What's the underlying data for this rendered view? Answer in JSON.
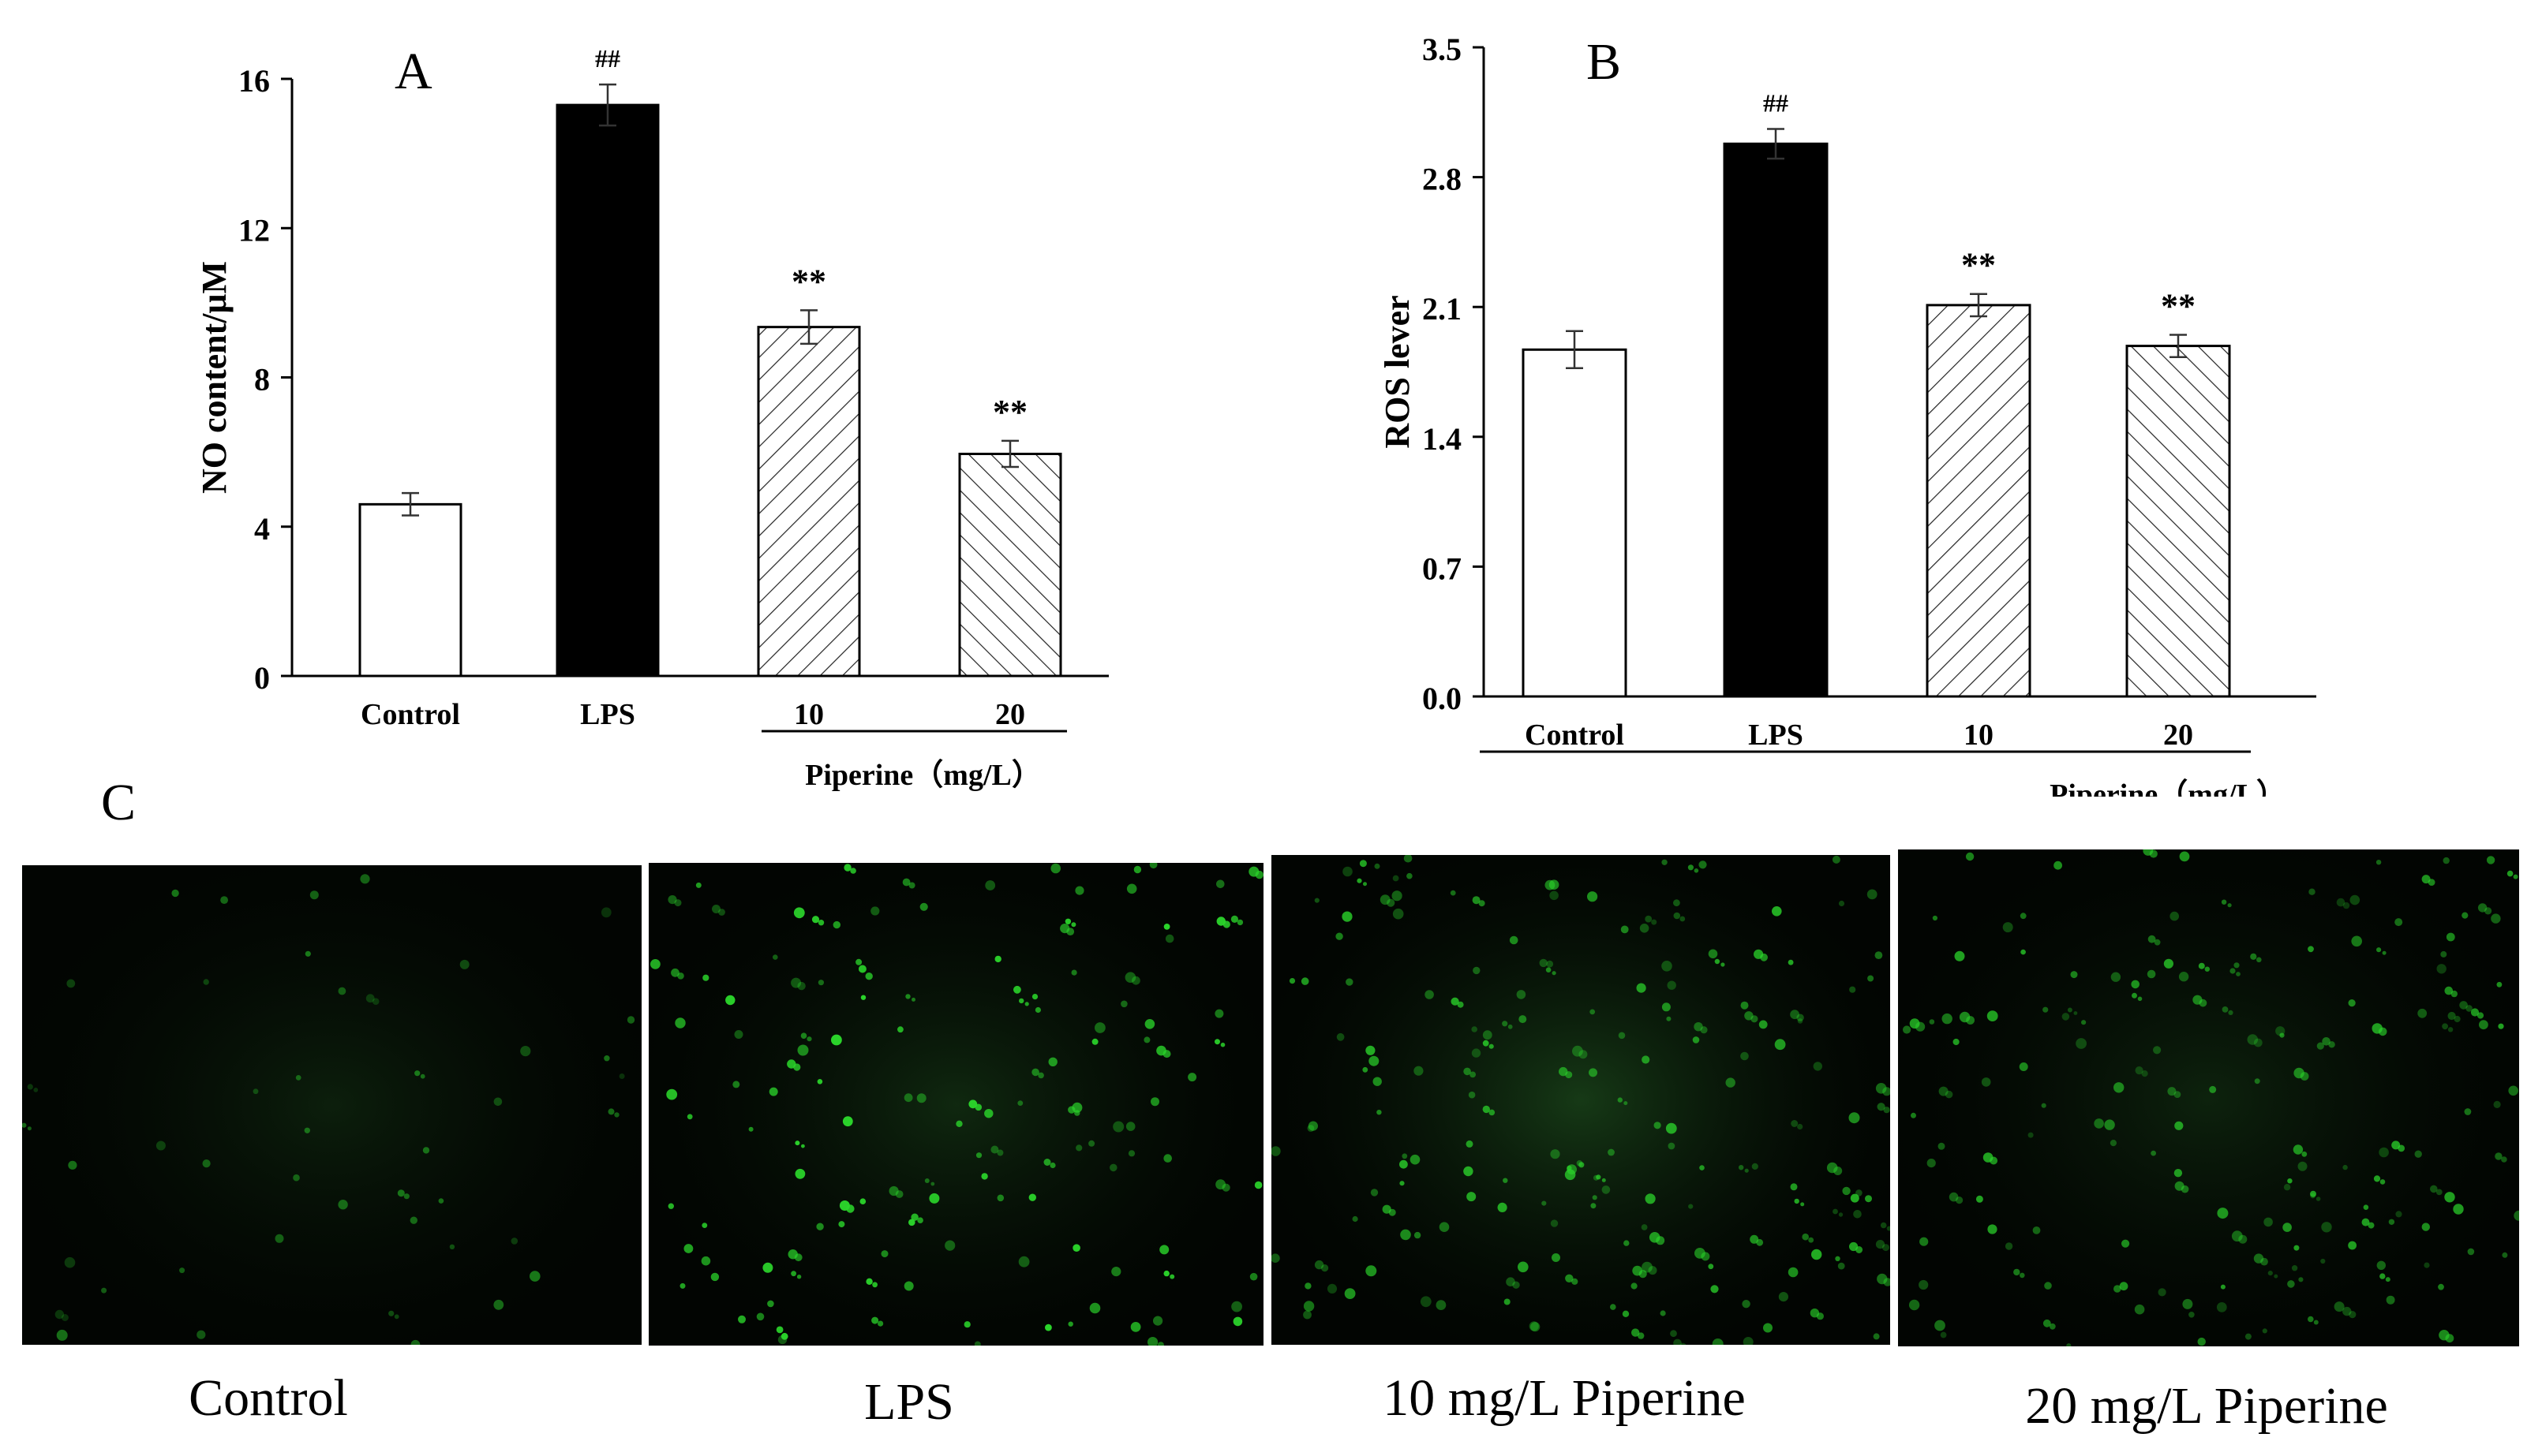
{
  "colors": {
    "axis": "#000000",
    "fluorescence": "#2bd62b"
  },
  "chart_data": [
    {
      "panel": "A",
      "type": "bar",
      "ylabel": "NO content/μM",
      "ylim": [
        0,
        16
      ],
      "yticks": [
        "0",
        "4",
        "8",
        "12",
        "16"
      ],
      "categories": [
        "Control",
        "LPS",
        "10",
        "20"
      ],
      "group_label": "Piperine（mg/L）",
      "values": [
        4.6,
        15.3,
        9.35,
        5.95
      ],
      "errors": [
        0.3,
        0.55,
        0.45,
        0.35
      ],
      "fills": [
        "white",
        "black",
        "hatch-forward",
        "hatch-back"
      ],
      "annotations": [
        "",
        "##",
        "**",
        "**"
      ]
    },
    {
      "panel": "B",
      "type": "bar",
      "ylabel": "ROS lever",
      "ylim": [
        0,
        3.5
      ],
      "yticks": [
        "0.0",
        "0.7",
        "1.4",
        "2.1",
        "2.8",
        "3.5"
      ],
      "categories": [
        "Control",
        "LPS",
        "10",
        "20"
      ],
      "group_label": "Piperine（mg/L）",
      "values": [
        1.87,
        2.98,
        2.11,
        1.89
      ],
      "errors": [
        0.1,
        0.08,
        0.06,
        0.06
      ],
      "fills": [
        "white",
        "black",
        "hatch-forward",
        "hatch-back"
      ],
      "annotations": [
        "",
        "##",
        "**",
        "**"
      ]
    }
  ],
  "panel_c": {
    "letter": "C",
    "images": [
      {
        "caption": "Control",
        "cells": 45,
        "glow": 0.22,
        "brightness": 0.55
      },
      {
        "caption": "LPS",
        "cells": 140,
        "glow": 0.3,
        "brightness": 1.0
      },
      {
        "caption": "10 mg/L Piperine",
        "cells": 190,
        "glow": 0.45,
        "brightness": 0.8
      },
      {
        "caption": "20 mg/L Piperine",
        "cells": 170,
        "glow": 0.25,
        "brightness": 0.75
      }
    ]
  }
}
